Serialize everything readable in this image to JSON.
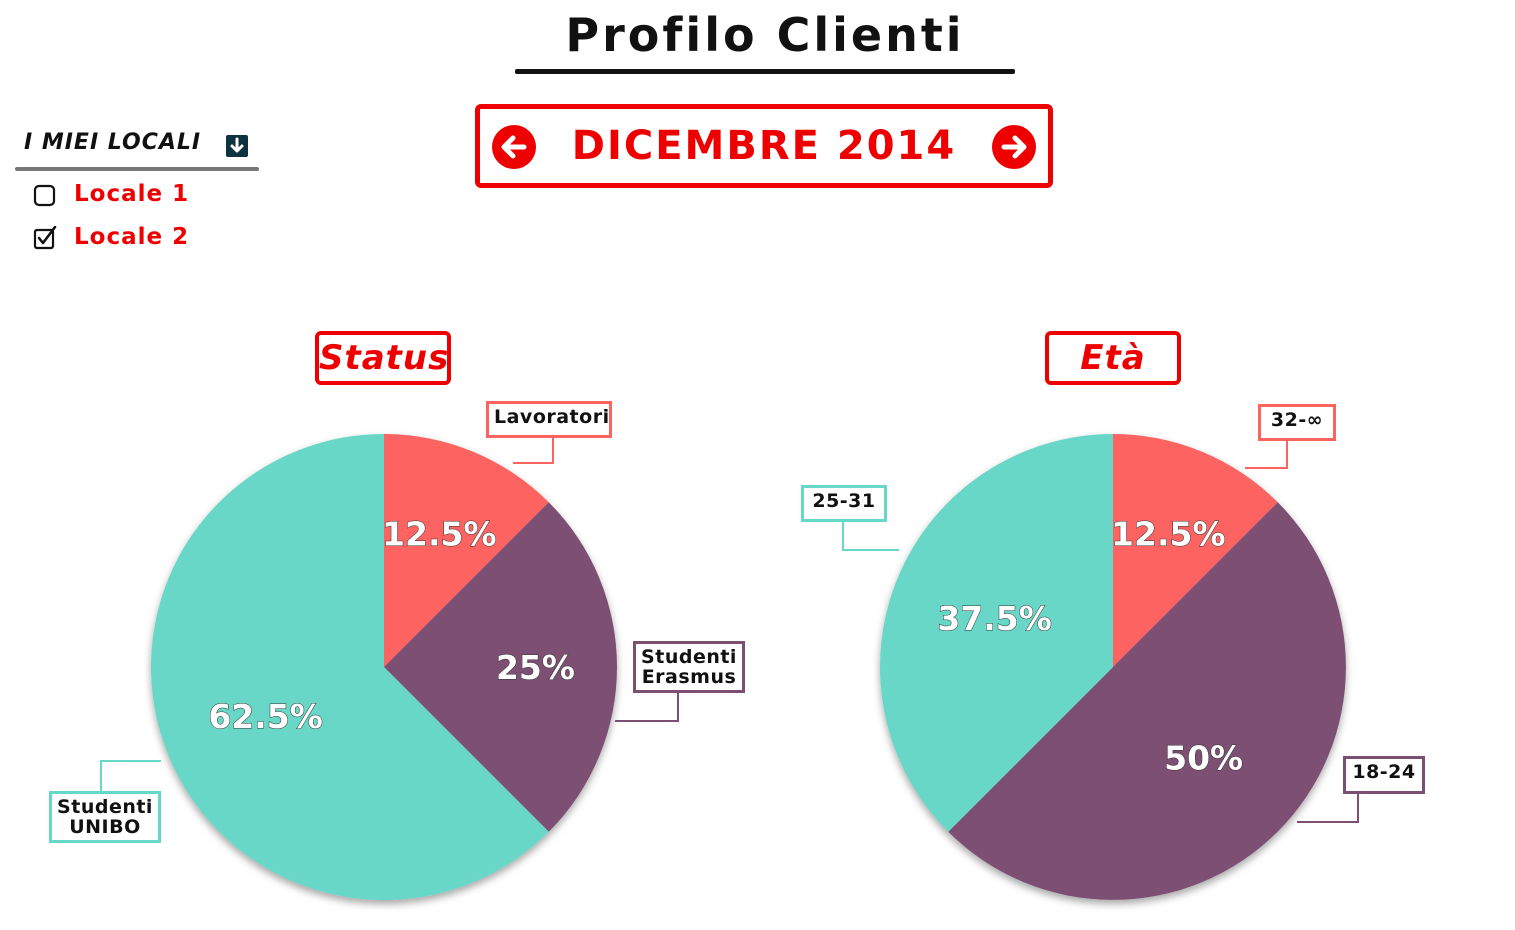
{
  "header": {
    "title": "Profilo Clienti"
  },
  "month_nav": {
    "label": "DICEMBRE 2014",
    "prev_icon": "arrow-left-circle-icon",
    "next_icon": "arrow-right-circle-icon"
  },
  "locali": {
    "header": "I MIEI LOCALI",
    "dropdown_icon": "arrow-down-square-icon",
    "items": [
      {
        "label": "Locale 1",
        "checked": false
      },
      {
        "label": "Locale 2",
        "checked": true
      }
    ]
  },
  "colors": {
    "accent": "#ee0000",
    "coral": "#fd6460",
    "purple": "#7d4f73",
    "teal": "#67d7c7"
  },
  "chart_data": [
    {
      "type": "pie",
      "title": "Status",
      "slices": [
        {
          "label": "Lavoratori",
          "value": 12.5,
          "display": "12.5%",
          "color": "#fd6460"
        },
        {
          "label": "Studenti Erasmus",
          "value": 25,
          "display": "25%",
          "color": "#7d4f73"
        },
        {
          "label": "Studenti UNIBO",
          "value": 62.5,
          "display": "62.5%",
          "color": "#67d7c7"
        }
      ]
    },
    {
      "type": "pie",
      "title": "Età",
      "slices": [
        {
          "label": "32-∞",
          "value": 12.5,
          "display": "12.5%",
          "color": "#fd6460"
        },
        {
          "label": "18-24",
          "value": 50,
          "display": "50%",
          "color": "#7d4f73"
        },
        {
          "label": "25-31",
          "value": 37.5,
          "display": "37.5%",
          "color": "#67d7c7"
        }
      ]
    }
  ]
}
